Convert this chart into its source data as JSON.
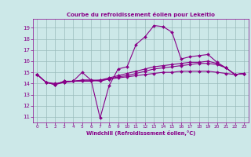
{
  "title": "Courbe du refroidissement éolien pour Lekeitio",
  "xlabel": "Windchill (Refroidissement éolien,°C)",
  "background_color": "#cce8e8",
  "line_color": "#880088",
  "grid_color": "#99bbbb",
  "xlim": [
    -0.5,
    23.5
  ],
  "ylim": [
    10.5,
    19.8
  ],
  "xticks": [
    0,
    1,
    2,
    3,
    4,
    5,
    6,
    7,
    8,
    9,
    10,
    11,
    12,
    13,
    14,
    15,
    16,
    17,
    18,
    19,
    20,
    21,
    22,
    23
  ],
  "yticks": [
    11,
    12,
    13,
    14,
    15,
    16,
    17,
    18,
    19
  ],
  "line1": [
    14.8,
    14.1,
    13.9,
    14.2,
    14.2,
    15.0,
    14.3,
    10.9,
    13.8,
    15.3,
    15.5,
    17.5,
    18.2,
    19.2,
    19.1,
    18.6,
    16.2,
    16.4,
    16.5,
    16.6,
    15.9,
    15.4,
    14.8,
    14.9
  ],
  "line2": [
    14.8,
    14.1,
    13.9,
    14.2,
    14.2,
    14.2,
    14.2,
    14.3,
    14.5,
    14.7,
    14.9,
    15.1,
    15.3,
    15.5,
    15.6,
    15.7,
    15.8,
    15.9,
    15.9,
    16.0,
    15.8,
    15.4,
    14.8,
    14.9
  ],
  "line3": [
    14.8,
    14.1,
    13.9,
    14.1,
    14.2,
    14.3,
    14.3,
    14.3,
    14.4,
    14.5,
    14.6,
    14.7,
    14.8,
    14.9,
    15.0,
    15.0,
    15.1,
    15.1,
    15.1,
    15.1,
    15.0,
    14.9,
    14.8,
    14.9
  ],
  "line4": [
    14.8,
    14.1,
    14.0,
    14.1,
    14.2,
    14.3,
    14.3,
    14.2,
    14.4,
    14.6,
    14.7,
    14.9,
    15.1,
    15.3,
    15.4,
    15.5,
    15.6,
    15.7,
    15.8,
    15.8,
    15.7,
    15.4,
    14.8,
    14.9
  ]
}
